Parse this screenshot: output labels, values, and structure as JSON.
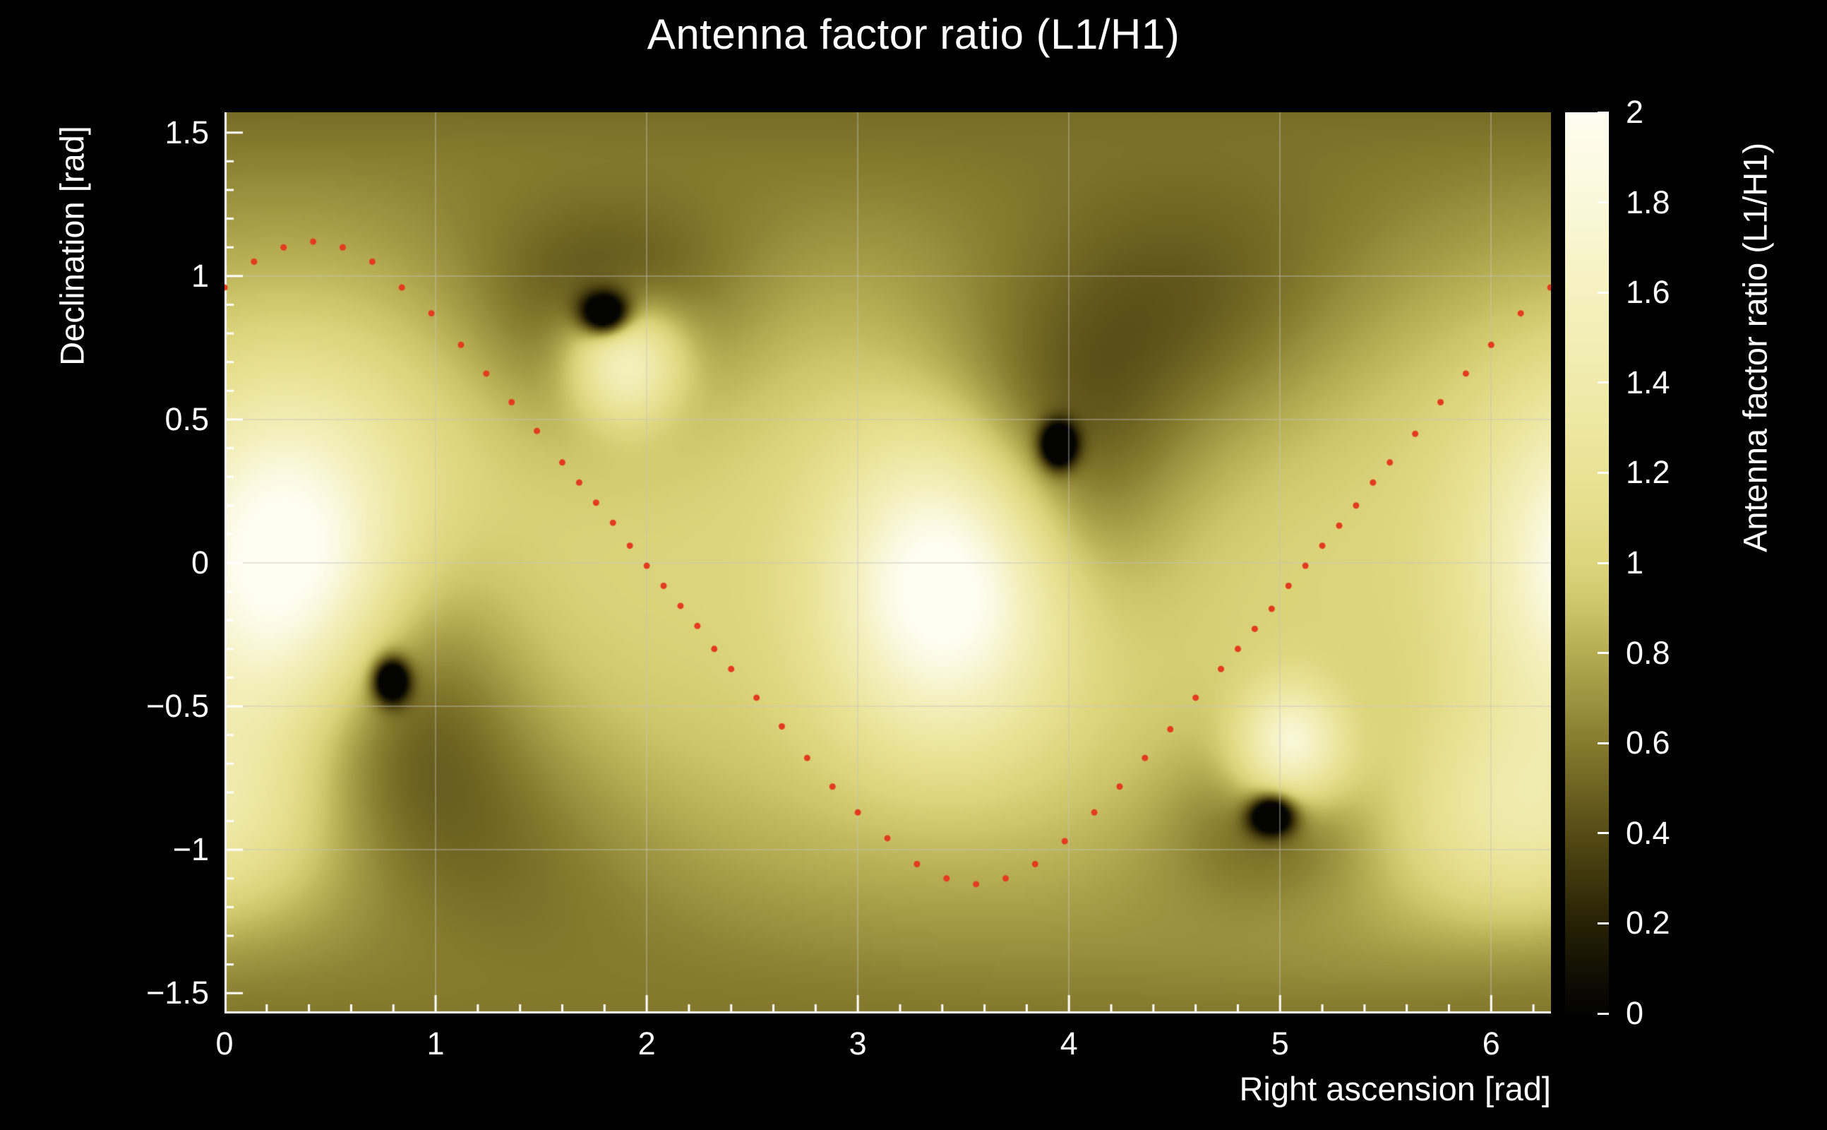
{
  "figure": {
    "background": "#000000"
  },
  "chart_data": {
    "type": "heatmap",
    "title": "Antenna factor ratio (L1/H1)",
    "xlabel": "Right ascension [rad]",
    "ylabel": "Declination [rad]",
    "zlabel": "Antenna factor ratio (L1/H1)",
    "x_range": [
      0,
      6.2832
    ],
    "y_range": [
      -1.5708,
      1.5708
    ],
    "z_range": [
      0,
      2
    ],
    "x_ticks": [
      {
        "v": 0,
        "label": "0"
      },
      {
        "v": 1,
        "label": "1"
      },
      {
        "v": 2,
        "label": "2"
      },
      {
        "v": 3,
        "label": "3"
      },
      {
        "v": 4,
        "label": "4"
      },
      {
        "v": 5,
        "label": "5"
      },
      {
        "v": 6,
        "label": "6"
      }
    ],
    "x_minor_step": 0.2,
    "y_ticks": [
      {
        "v": -1.5,
        "label": "−1.5"
      },
      {
        "v": -1,
        "label": "−1"
      },
      {
        "v": -0.5,
        "label": "−0.5"
      },
      {
        "v": 0,
        "label": "0"
      },
      {
        "v": 0.5,
        "label": "0.5"
      },
      {
        "v": 1,
        "label": "1"
      },
      {
        "v": 1.5,
        "label": "1.5"
      }
    ],
    "y_minor_step": 0.1,
    "z_ticks": [
      {
        "v": 0,
        "label": "0"
      },
      {
        "v": 0.2,
        "label": "0.2"
      },
      {
        "v": 0.4,
        "label": "0.4"
      },
      {
        "v": 0.6,
        "label": "0.6"
      },
      {
        "v": 0.8,
        "label": "0.8"
      },
      {
        "v": 1,
        "label": "1"
      },
      {
        "v": 1.2,
        "label": "1.2"
      },
      {
        "v": 1.4,
        "label": "1.4"
      },
      {
        "v": 1.6,
        "label": "1.6"
      },
      {
        "v": 1.8,
        "label": "1.8"
      },
      {
        "v": 2,
        "label": "2"
      }
    ],
    "grid": {
      "show": true,
      "x_lines": [
        1,
        2,
        3,
        4,
        5,
        6
      ],
      "y_lines": [
        -1,
        -0.5,
        0,
        0.5,
        1
      ]
    },
    "colormap": [
      [
        0.0,
        "#030302"
      ],
      [
        0.05,
        "#0a0903"
      ],
      [
        0.2,
        "#272105"
      ],
      [
        0.4,
        "#554b15"
      ],
      [
        0.6,
        "#867b2e"
      ],
      [
        0.8,
        "#b6ac52"
      ],
      [
        0.9,
        "#cdc569"
      ],
      [
        1.0,
        "#ddd57b"
      ],
      [
        1.15,
        "#e7e090"
      ],
      [
        1.35,
        "#eee9a6"
      ],
      [
        1.6,
        "#f5f1c0"
      ],
      [
        1.8,
        "#faf8da"
      ],
      [
        2.0,
        "#fffdf0"
      ]
    ],
    "field": {
      "base_offset": 0.62,
      "base_cos_dec_amp": 0.38,
      "bright_spots": [
        {
          "ra": 0.3,
          "dec": 0.0,
          "amp": 1.25,
          "sigma": 0.55
        },
        {
          "ra": 3.42,
          "dec": -0.08,
          "amp": 1.25,
          "sigma": 0.5
        },
        {
          "ra": 1.9,
          "dec": 0.7,
          "amp": 1.0,
          "sigma": 0.2
        },
        {
          "ra": 5.05,
          "dec": -0.64,
          "amp": 1.0,
          "sigma": 0.2
        },
        {
          "ra": 6.2,
          "dec": -0.9,
          "amp": 0.55,
          "sigma": 0.38
        }
      ],
      "dark_spots": [
        {
          "ra": 1.8,
          "dec": 0.87,
          "core_depth": 1.3,
          "core_sigma": 0.07,
          "halo_depth": 0.45,
          "halo_sigma": 0.4
        },
        {
          "ra": 3.95,
          "dec": 0.41,
          "core_depth": 1.3,
          "core_sigma": 0.075,
          "halo_depth": 0.5,
          "halo_sigma": 0.55
        },
        {
          "ra": 0.79,
          "dec": -0.41,
          "core_depth": 1.3,
          "core_sigma": 0.075,
          "halo_depth": 0.5,
          "halo_sigma": 0.5
        },
        {
          "ra": 4.96,
          "dec": -0.88,
          "core_depth": 1.3,
          "core_sigma": 0.065,
          "halo_depth": 0.35,
          "halo_sigma": 0.3
        }
      ],
      "shade_spots": [
        {
          "ra": 4.65,
          "dec": 0.9,
          "depth": 0.3,
          "sigma": 0.5
        },
        {
          "ra": 1.15,
          "dec": -0.95,
          "depth": 0.25,
          "sigma": 0.5
        }
      ]
    },
    "overlay_curve": {
      "color": "#e23b20",
      "dot_radius_px": 4.5,
      "points": [
        [
          0.0,
          0.96
        ],
        [
          0.14,
          1.05
        ],
        [
          0.28,
          1.1
        ],
        [
          0.42,
          1.12
        ],
        [
          0.56,
          1.1
        ],
        [
          0.7,
          1.05
        ],
        [
          0.84,
          0.96
        ],
        [
          0.98,
          0.87
        ],
        [
          1.12,
          0.76
        ],
        [
          1.24,
          0.66
        ],
        [
          1.36,
          0.56
        ],
        [
          1.48,
          0.46
        ],
        [
          1.6,
          0.35
        ],
        [
          1.68,
          0.28
        ],
        [
          1.76,
          0.21
        ],
        [
          1.84,
          0.14
        ],
        [
          1.92,
          0.06
        ],
        [
          2.0,
          -0.01
        ],
        [
          2.08,
          -0.08
        ],
        [
          2.16,
          -0.15
        ],
        [
          2.24,
          -0.22
        ],
        [
          2.32,
          -0.3
        ],
        [
          2.4,
          -0.37
        ],
        [
          2.52,
          -0.47
        ],
        [
          2.64,
          -0.57
        ],
        [
          2.76,
          -0.68
        ],
        [
          2.88,
          -0.78
        ],
        [
          3.0,
          -0.87
        ],
        [
          3.14,
          -0.96
        ],
        [
          3.28,
          -1.05
        ],
        [
          3.42,
          -1.1
        ],
        [
          3.56,
          -1.12
        ],
        [
          3.7,
          -1.1
        ],
        [
          3.84,
          -1.05
        ],
        [
          3.98,
          -0.97
        ],
        [
          4.12,
          -0.87
        ],
        [
          4.24,
          -0.78
        ],
        [
          4.36,
          -0.68
        ],
        [
          4.48,
          -0.58
        ],
        [
          4.6,
          -0.47
        ],
        [
          4.72,
          -0.37
        ],
        [
          4.8,
          -0.3
        ],
        [
          4.88,
          -0.23
        ],
        [
          4.96,
          -0.16
        ],
        [
          5.04,
          -0.08
        ],
        [
          5.12,
          -0.01
        ],
        [
          5.2,
          0.06
        ],
        [
          5.28,
          0.13
        ],
        [
          5.36,
          0.2
        ],
        [
          5.44,
          0.28
        ],
        [
          5.52,
          0.35
        ],
        [
          5.64,
          0.45
        ],
        [
          5.76,
          0.56
        ],
        [
          5.88,
          0.66
        ],
        [
          6.0,
          0.76
        ],
        [
          6.14,
          0.87
        ],
        [
          6.28,
          0.96
        ]
      ]
    }
  }
}
